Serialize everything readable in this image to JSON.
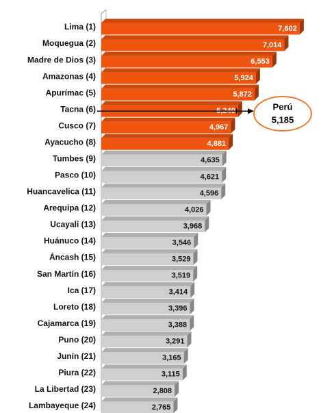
{
  "chart_data": {
    "type": "bar",
    "orientation": "horizontal",
    "categories": [
      "Lima (1)",
      "Moquegua (2)",
      "Madre de Dios (3)",
      "Amazonas (4)",
      "Apurímac (5)",
      "Tacna (6)",
      "Cusco (7)",
      "Ayacucho (8)",
      "Tumbes (9)",
      "Pasco (10)",
      "Huancavelica (11)",
      "Arequipa (12)",
      "Ucayali (13)",
      "Huánuco (14)",
      "Áncash (15)",
      "San Martín (16)",
      "Ica (17)",
      "Loreto (18)",
      "Cajamarca (19)",
      "Puno (20)",
      "Junín (21)",
      "Piura (22)",
      "La Libertad (23)",
      "Lambayeque (24)"
    ],
    "values": [
      7602,
      7014,
      6553,
      5924,
      5872,
      5240,
      4967,
      4881,
      4635,
      4621,
      4596,
      4026,
      3968,
      3546,
      3529,
      3519,
      3414,
      3396,
      3388,
      3291,
      3165,
      3115,
      2808,
      2765
    ],
    "value_labels": [
      "7,602",
      "7,014",
      "6,553",
      "5,924",
      "5,872",
      "5,240",
      "4,967",
      "4,881",
      "4,635",
      "4,621",
      "4,596",
      "4,026",
      "3,968",
      "3,546",
      "3,529",
      "3,519",
      "3,414",
      "3,396",
      "3,388",
      "3,291",
      "3,165",
      "3,115",
      "2,808",
      "2,765"
    ],
    "colors": [
      "#f0550f",
      "#f0550f",
      "#f0550f",
      "#f0550f",
      "#f0550f",
      "#f0550f",
      "#f0550f",
      "#f0550f",
      "#cfcfcf",
      "#cfcfcf",
      "#cfcfcf",
      "#cfcfcf",
      "#cfcfcf",
      "#cfcfcf",
      "#cfcfcf",
      "#cfcfcf",
      "#cfcfcf",
      "#cfcfcf",
      "#cfcfcf",
      "#cfcfcf",
      "#cfcfcf",
      "#cfcfcf",
      "#cfcfcf",
      "#cfcfcf"
    ],
    "xlim": [
      0,
      8000
    ],
    "reference": {
      "label": "Perú",
      "value": 5185,
      "value_label": "5,185"
    }
  }
}
